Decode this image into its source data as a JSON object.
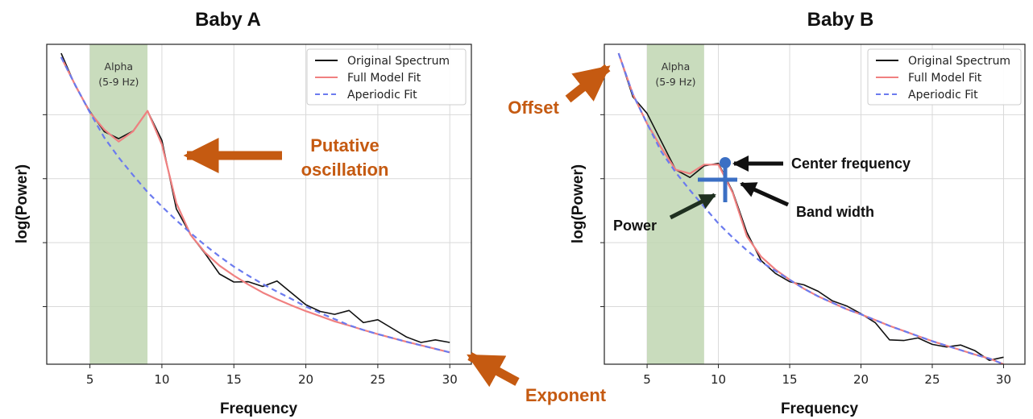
{
  "chart_data": [
    {
      "type": "line",
      "title": "Baby A",
      "xlabel": "Frequency",
      "ylabel": "log(Power)",
      "xlim": [
        2,
        31.5
      ],
      "ylim": [
        0,
        10
      ],
      "xticks": [
        5,
        10,
        15,
        20,
        25,
        30
      ],
      "yticks_labeled": false,
      "grid": true,
      "legend_position": "top-right",
      "band": {
        "label_line1": "Alpha",
        "label_line2": "(5-9 Hz)",
        "range": [
          5,
          9
        ],
        "color": "#bfd6b1"
      },
      "series": [
        {
          "name": "Original Spectrum",
          "color": "#111111",
          "style": "solid",
          "x": [
            3,
            4,
            5,
            6,
            7,
            8,
            9,
            10,
            11,
            12,
            13,
            14,
            15,
            16,
            17,
            18,
            19,
            20,
            21,
            22,
            23,
            24,
            25,
            26,
            27,
            28,
            29,
            30
          ],
          "y": [
            9.72,
            8.69,
            7.9,
            7.27,
            7.05,
            7.29,
            7.92,
            7.0,
            4.86,
            4.04,
            3.46,
            2.82,
            2.57,
            2.58,
            2.43,
            2.6,
            2.23,
            1.86,
            1.65,
            1.56,
            1.68,
            1.3,
            1.39,
            1.12,
            0.85,
            0.68,
            0.76,
            0.68
          ]
        },
        {
          "name": "Full Model Fit",
          "color": "#f08080",
          "style": "solid",
          "x": [
            3,
            4,
            5,
            6,
            7,
            8,
            9,
            10,
            11,
            12,
            13,
            14,
            15,
            16,
            17,
            18,
            19,
            20,
            21,
            22,
            23,
            24,
            25,
            26,
            27,
            28,
            29,
            30
          ],
          "y": [
            9.6,
            8.71,
            7.87,
            7.33,
            6.96,
            7.28,
            7.92,
            6.87,
            5.04,
            4.04,
            3.49,
            3.08,
            2.77,
            2.49,
            2.24,
            2.03,
            1.84,
            1.66,
            1.5,
            1.34,
            1.21,
            1.07,
            0.94,
            0.82,
            0.7,
            0.59,
            0.48,
            0.37
          ]
        },
        {
          "name": "Aperiodic Fit",
          "color": "#6b7bef",
          "style": "dashed",
          "x": [
            3,
            4,
            5,
            6,
            7,
            8,
            9,
            10,
            11,
            12,
            13,
            14,
            15,
            16,
            17,
            18,
            19,
            20,
            21,
            22,
            23,
            24,
            25,
            26,
            27,
            28,
            29,
            30
          ],
          "y": [
            9.6,
            8.71,
            7.87,
            7.08,
            6.46,
            5.91,
            5.38,
            4.93,
            4.5,
            4.1,
            3.72,
            3.37,
            3.05,
            2.77,
            2.51,
            2.27,
            2.04,
            1.8,
            1.6,
            1.41,
            1.22,
            1.07,
            0.94,
            0.82,
            0.7,
            0.59,
            0.48,
            0.37
          ]
        }
      ]
    },
    {
      "type": "line",
      "title": "Baby B",
      "xlabel": "Frequency",
      "ylabel": "log(Power)",
      "xlim": [
        2,
        31.5
      ],
      "ylim": [
        0,
        10
      ],
      "xticks": [
        5,
        10,
        15,
        20,
        25,
        30
      ],
      "yticks_labeled": false,
      "grid": true,
      "legend_position": "top-right",
      "band": {
        "label_line1": "Alpha",
        "label_line2": "(5-9 Hz)",
        "range": [
          5,
          9
        ],
        "color": "#bfd6b1"
      },
      "series": [
        {
          "name": "Original Spectrum",
          "color": "#111111",
          "style": "solid",
          "x": [
            3,
            4,
            5,
            6,
            7,
            8,
            9,
            10,
            11,
            12,
            13,
            14,
            15,
            16,
            17,
            18,
            19,
            20,
            21,
            22,
            23,
            24,
            25,
            26,
            27,
            28,
            29,
            30
          ],
          "y": [
            9.72,
            8.36,
            7.84,
            6.96,
            6.08,
            5.84,
            6.2,
            6.28,
            5.4,
            4.12,
            3.24,
            2.84,
            2.58,
            2.48,
            2.28,
            1.98,
            1.82,
            1.58,
            1.3,
            0.76,
            0.74,
            0.82,
            0.62,
            0.54,
            0.6,
            0.42,
            0.12,
            0.22
          ]
        },
        {
          "name": "Full Model Fit",
          "color": "#f08080",
          "style": "solid",
          "x": [
            3,
            4,
            5,
            6,
            7,
            8,
            9,
            10,
            11,
            12,
            13,
            14,
            15,
            16,
            17,
            18,
            19,
            20,
            21,
            22,
            23,
            24,
            25,
            26,
            27,
            28,
            29,
            30
          ],
          "y": [
            9.72,
            8.44,
            7.52,
            6.76,
            6.08,
            5.96,
            6.24,
            6.24,
            5.36,
            4.0,
            3.36,
            2.96,
            2.64,
            2.36,
            2.12,
            1.92,
            1.72,
            1.56,
            1.38,
            1.2,
            1.04,
            0.88,
            0.72,
            0.58,
            0.44,
            0.3,
            0.18,
            0.0
          ]
        },
        {
          "name": "Aperiodic Fit",
          "color": "#6b7bef",
          "style": "dashed",
          "x": [
            3,
            4,
            5,
            6,
            7,
            8,
            9,
            10,
            11,
            12,
            13,
            14,
            15,
            16,
            17,
            18,
            19,
            20,
            21,
            22,
            23,
            24,
            25,
            26,
            27,
            28,
            29,
            30
          ],
          "y": [
            9.72,
            8.44,
            7.52,
            6.64,
            6.0,
            5.44,
            4.92,
            4.4,
            3.96,
            3.56,
            3.2,
            2.92,
            2.64,
            2.36,
            2.12,
            1.92,
            1.72,
            1.56,
            1.38,
            1.2,
            1.04,
            0.88,
            0.72,
            0.58,
            0.44,
            0.3,
            0.18,
            0.0
          ]
        }
      ]
    }
  ],
  "annotations": {
    "a_putative_line1": "Putative",
    "a_putative_line2": "oscillation",
    "a_exponent": "Exponent",
    "b_offset": "Offset",
    "b_center": "Center frequency",
    "b_bandwidth": "Band width",
    "b_power": "Power",
    "orange": "#c55a11",
    "blue": "#3b6fc4"
  }
}
